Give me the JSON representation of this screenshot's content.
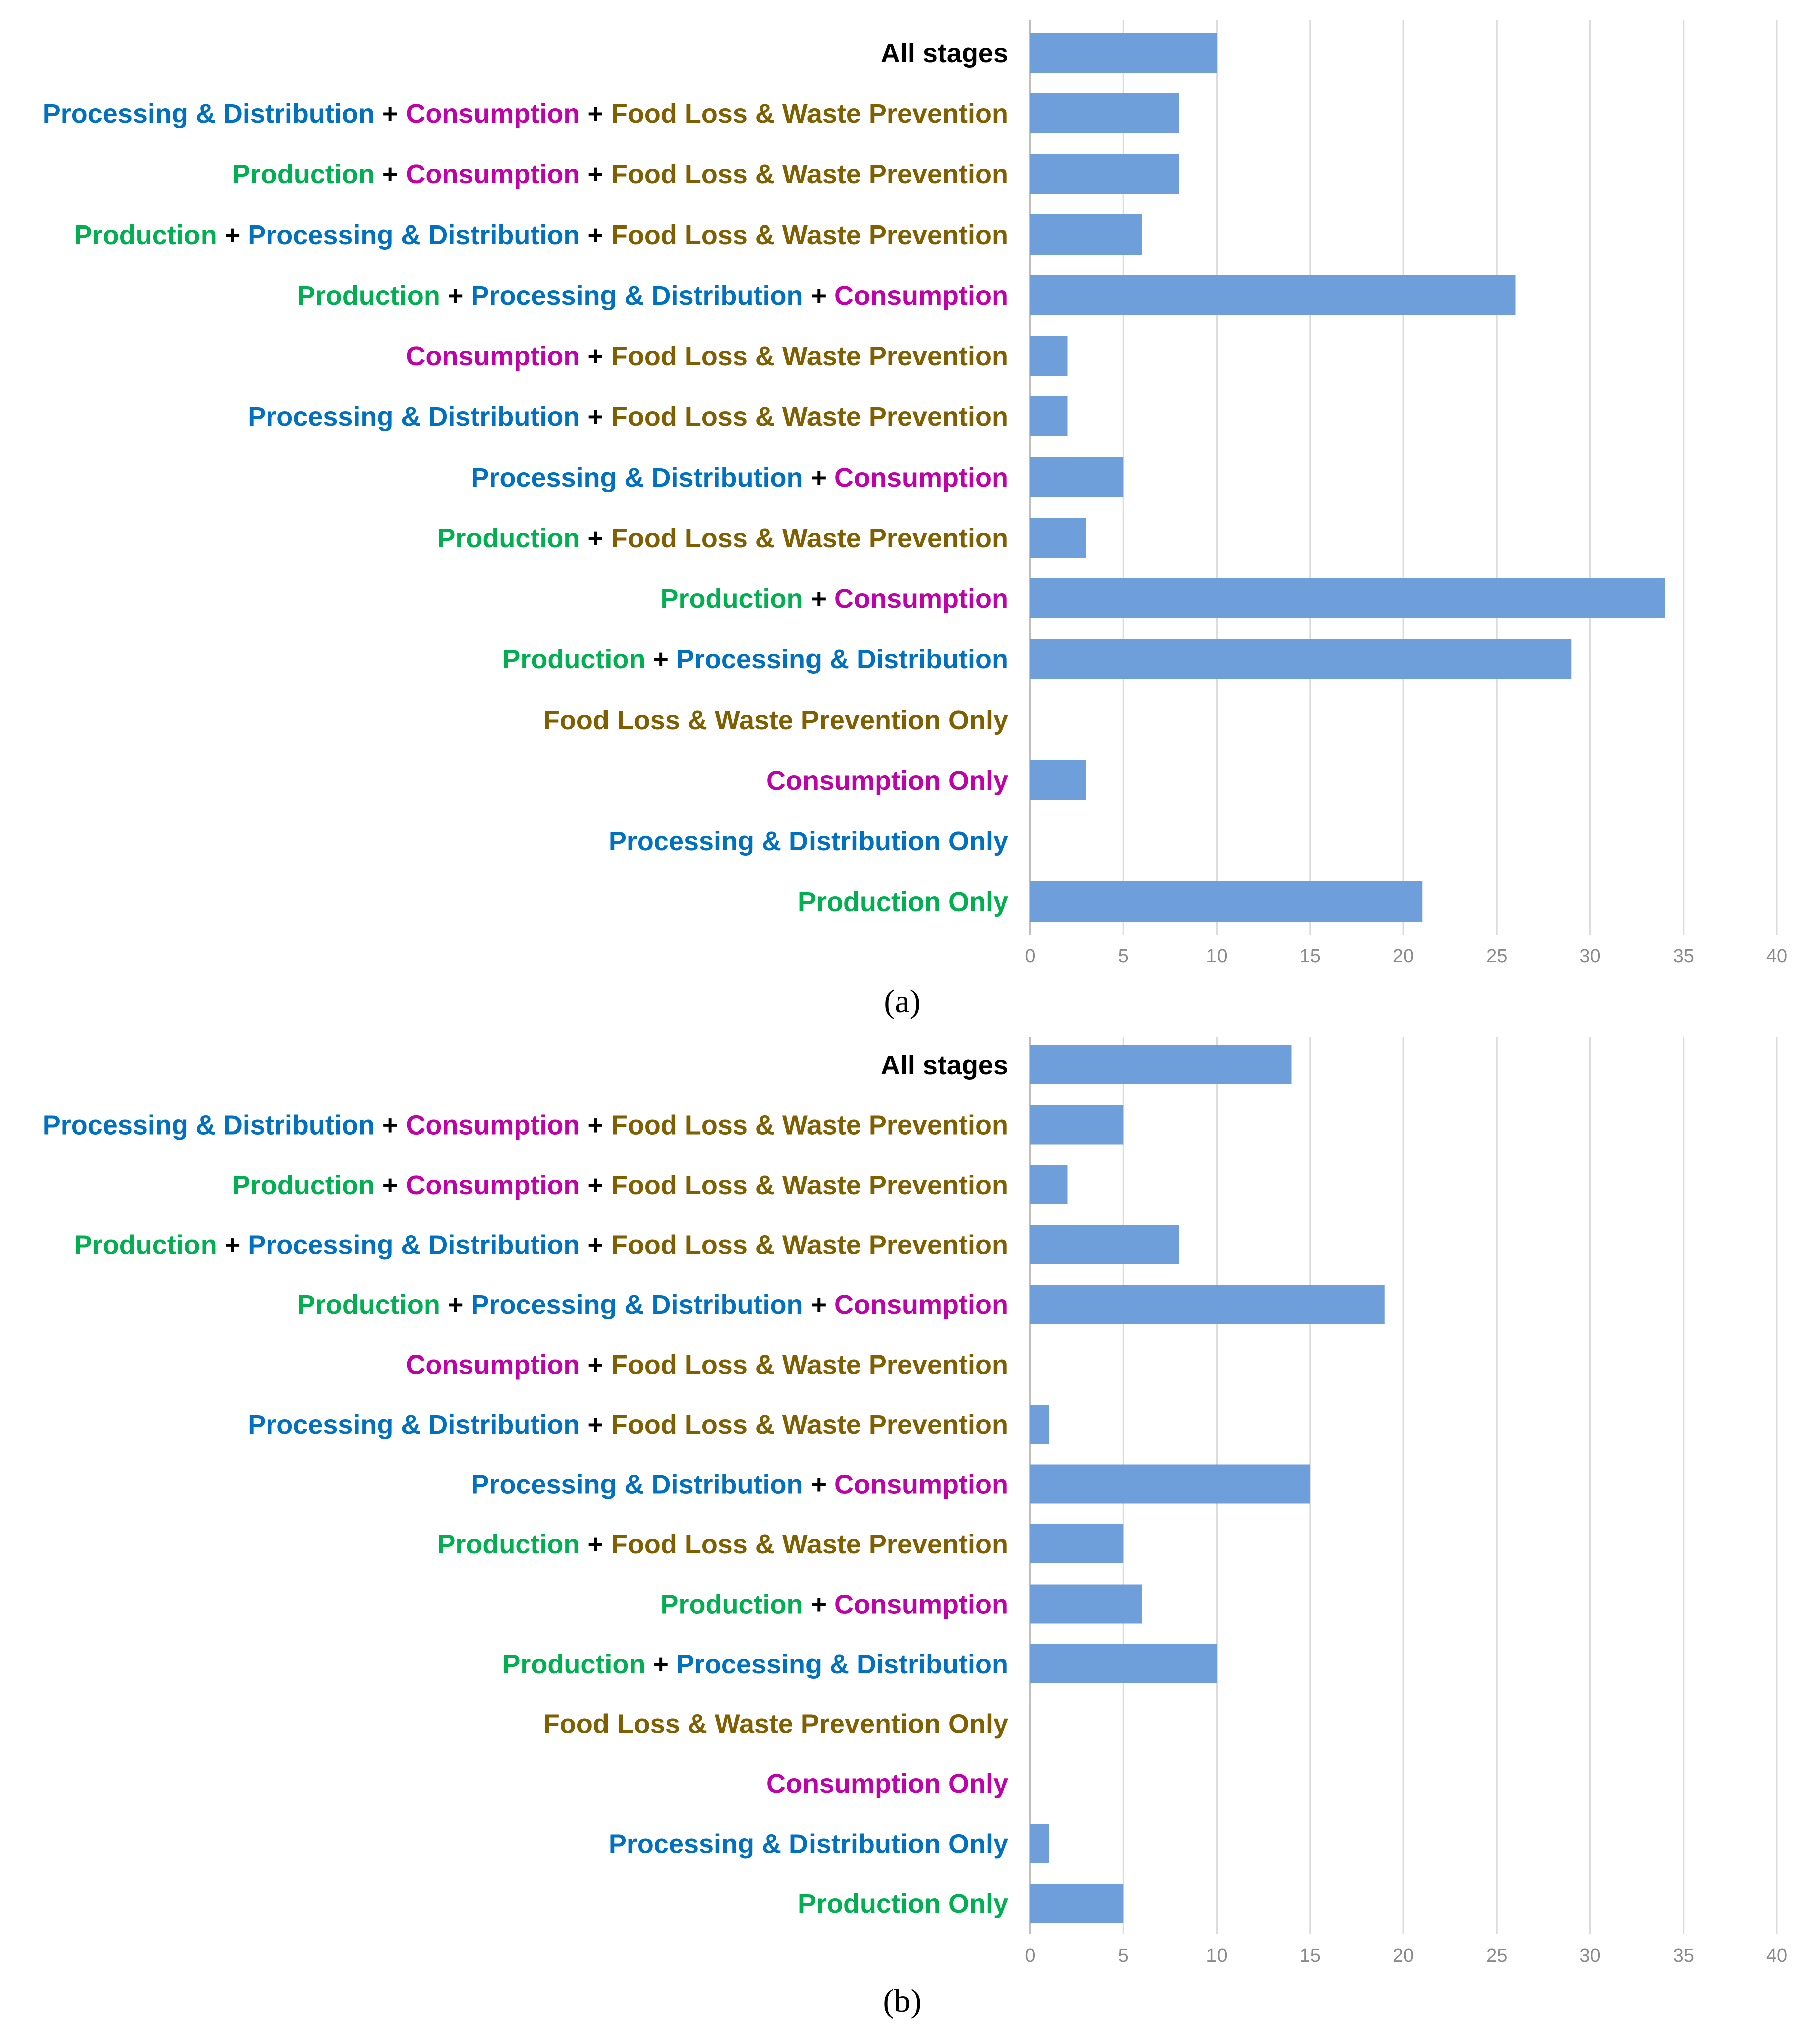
{
  "colors": {
    "production": "#00b050",
    "processing": "#0070c0",
    "consumption": "#c000a8",
    "flw": "#7f5f00",
    "plain": "#000000",
    "bar": "#6f9fdb",
    "grid": "#dcdcdc",
    "axis": "#bfbfbf"
  },
  "chart_data": [
    {
      "type": "bar",
      "orientation": "horizontal",
      "panel_label": "(a)",
      "xlim": [
        0,
        40
      ],
      "xticks": [
        "0",
        "5",
        "10",
        "15",
        "20",
        "25",
        "30",
        "35",
        "40"
      ],
      "grid": true,
      "categories": [
        {
          "id": "all-stages",
          "parts": [
            {
              "text": "All stages",
              "color": "plain"
            }
          ]
        },
        {
          "id": "pd-cons-flw",
          "parts": [
            {
              "text": "Processing & Distribution",
              "color": "processing"
            },
            {
              "text": " + ",
              "color": "plain"
            },
            {
              "text": "Consumption",
              "color": "consumption"
            },
            {
              "text": " + ",
              "color": "plain"
            },
            {
              "text": "Food Loss & Waste Prevention",
              "color": "flw"
            }
          ]
        },
        {
          "id": "prod-cons-flw",
          "parts": [
            {
              "text": "Production",
              "color": "production"
            },
            {
              "text": " + ",
              "color": "plain"
            },
            {
              "text": "Consumption",
              "color": "consumption"
            },
            {
              "text": " + ",
              "color": "plain"
            },
            {
              "text": "Food Loss & Waste Prevention",
              "color": "flw"
            }
          ]
        },
        {
          "id": "prod-pd-flw",
          "parts": [
            {
              "text": "Production",
              "color": "production"
            },
            {
              "text": " + ",
              "color": "plain"
            },
            {
              "text": "Processing & Distribution",
              "color": "processing"
            },
            {
              "text": " + ",
              "color": "plain"
            },
            {
              "text": "Food Loss & Waste Prevention",
              "color": "flw"
            }
          ]
        },
        {
          "id": "prod-pd-cons",
          "parts": [
            {
              "text": "Production",
              "color": "production"
            },
            {
              "text": " + ",
              "color": "plain"
            },
            {
              "text": "Processing & Distribution",
              "color": "processing"
            },
            {
              "text": " + ",
              "color": "plain"
            },
            {
              "text": "Consumption",
              "color": "consumption"
            }
          ]
        },
        {
          "id": "cons-flw",
          "parts": [
            {
              "text": "Consumption",
              "color": "consumption"
            },
            {
              "text": " + ",
              "color": "plain"
            },
            {
              "text": "Food Loss & Waste Prevention",
              "color": "flw"
            }
          ]
        },
        {
          "id": "pd-flw",
          "parts": [
            {
              "text": "Processing & Distribution",
              "color": "processing"
            },
            {
              "text": " + ",
              "color": "plain"
            },
            {
              "text": "Food Loss & Waste Prevention",
              "color": "flw"
            }
          ]
        },
        {
          "id": "pd-cons",
          "parts": [
            {
              "text": "Processing & Distribution",
              "color": "processing"
            },
            {
              "text": " + ",
              "color": "plain"
            },
            {
              "text": "Consumption",
              "color": "consumption"
            }
          ]
        },
        {
          "id": "prod-flw",
          "parts": [
            {
              "text": "Production",
              "color": "production"
            },
            {
              "text": " + ",
              "color": "plain"
            },
            {
              "text": "Food Loss & Waste Prevention",
              "color": "flw"
            }
          ]
        },
        {
          "id": "prod-cons",
          "parts": [
            {
              "text": "Production",
              "color": "production"
            },
            {
              "text": " + ",
              "color": "plain"
            },
            {
              "text": "Consumption",
              "color": "consumption"
            }
          ]
        },
        {
          "id": "prod-pd",
          "parts": [
            {
              "text": "Production",
              "color": "production"
            },
            {
              "text": " + ",
              "color": "plain"
            },
            {
              "text": "Processing & Distribution",
              "color": "processing"
            }
          ]
        },
        {
          "id": "flw-only",
          "parts": [
            {
              "text": "Food Loss & Waste Prevention Only",
              "color": "flw"
            }
          ]
        },
        {
          "id": "cons-only",
          "parts": [
            {
              "text": "Consumption Only",
              "color": "consumption"
            }
          ]
        },
        {
          "id": "pd-only",
          "parts": [
            {
              "text": "Processing & Distribution Only",
              "color": "processing"
            }
          ]
        },
        {
          "id": "prod-only",
          "parts": [
            {
              "text": "Production Only",
              "color": "production"
            }
          ]
        }
      ],
      "values": [
        10,
        8,
        8,
        6,
        26,
        2,
        2,
        5,
        3,
        34,
        29,
        0,
        3,
        0,
        21
      ]
    },
    {
      "type": "bar",
      "orientation": "horizontal",
      "panel_label": "(b)",
      "xlim": [
        0,
        40
      ],
      "xticks": [
        "0",
        "5",
        "10",
        "15",
        "20",
        "25",
        "30",
        "35",
        "40"
      ],
      "grid": true,
      "categories": [
        {
          "id": "all-stages",
          "parts": [
            {
              "text": "All stages",
              "color": "plain"
            }
          ]
        },
        {
          "id": "pd-cons-flw",
          "parts": [
            {
              "text": "Processing & Distribution",
              "color": "processing"
            },
            {
              "text": " + ",
              "color": "plain"
            },
            {
              "text": "Consumption",
              "color": "consumption"
            },
            {
              "text": " + ",
              "color": "plain"
            },
            {
              "text": "Food Loss & Waste Prevention",
              "color": "flw"
            }
          ]
        },
        {
          "id": "prod-cons-flw",
          "parts": [
            {
              "text": "Production",
              "color": "production"
            },
            {
              "text": " + ",
              "color": "plain"
            },
            {
              "text": "Consumption",
              "color": "consumption"
            },
            {
              "text": " + ",
              "color": "plain"
            },
            {
              "text": "Food Loss & Waste Prevention",
              "color": "flw"
            }
          ]
        },
        {
          "id": "prod-pd-flw",
          "parts": [
            {
              "text": "Production",
              "color": "production"
            },
            {
              "text": " + ",
              "color": "plain"
            },
            {
              "text": "Processing & Distribution",
              "color": "processing"
            },
            {
              "text": " + ",
              "color": "plain"
            },
            {
              "text": "Food Loss & Waste Prevention",
              "color": "flw"
            }
          ]
        },
        {
          "id": "prod-pd-cons",
          "parts": [
            {
              "text": "Production",
              "color": "production"
            },
            {
              "text": " + ",
              "color": "plain"
            },
            {
              "text": "Processing & Distribution",
              "color": "processing"
            },
            {
              "text": " + ",
              "color": "plain"
            },
            {
              "text": "Consumption",
              "color": "consumption"
            }
          ]
        },
        {
          "id": "cons-flw",
          "parts": [
            {
              "text": "Consumption",
              "color": "consumption"
            },
            {
              "text": " + ",
              "color": "plain"
            },
            {
              "text": "Food Loss & Waste Prevention",
              "color": "flw"
            }
          ]
        },
        {
          "id": "pd-flw",
          "parts": [
            {
              "text": "Processing & Distribution",
              "color": "processing"
            },
            {
              "text": " + ",
              "color": "plain"
            },
            {
              "text": "Food Loss & Waste Prevention",
              "color": "flw"
            }
          ]
        },
        {
          "id": "pd-cons",
          "parts": [
            {
              "text": "Processing & Distribution",
              "color": "processing"
            },
            {
              "text": " + ",
              "color": "plain"
            },
            {
              "text": "Consumption",
              "color": "consumption"
            }
          ]
        },
        {
          "id": "prod-flw",
          "parts": [
            {
              "text": "Production",
              "color": "production"
            },
            {
              "text": " + ",
              "color": "plain"
            },
            {
              "text": "Food Loss & Waste Prevention",
              "color": "flw"
            }
          ]
        },
        {
          "id": "prod-cons",
          "parts": [
            {
              "text": "Production",
              "color": "production"
            },
            {
              "text": " + ",
              "color": "plain"
            },
            {
              "text": "Consumption",
              "color": "consumption"
            }
          ]
        },
        {
          "id": "prod-pd",
          "parts": [
            {
              "text": "Production",
              "color": "production"
            },
            {
              "text": " + ",
              "color": "plain"
            },
            {
              "text": "Processing & Distribution",
              "color": "processing"
            }
          ]
        },
        {
          "id": "flw-only",
          "parts": [
            {
              "text": "Food Loss & Waste Prevention Only",
              "color": "flw"
            }
          ]
        },
        {
          "id": "cons-only",
          "parts": [
            {
              "text": "Consumption Only",
              "color": "consumption"
            }
          ]
        },
        {
          "id": "pd-only",
          "parts": [
            {
              "text": "Processing & Distribution Only",
              "color": "processing"
            }
          ]
        },
        {
          "id": "prod-only",
          "parts": [
            {
              "text": "Production Only",
              "color": "production"
            }
          ]
        }
      ],
      "values": [
        14,
        5,
        2,
        8,
        19,
        0,
        1,
        15,
        5,
        6,
        10,
        0,
        0,
        1,
        5
      ]
    }
  ]
}
